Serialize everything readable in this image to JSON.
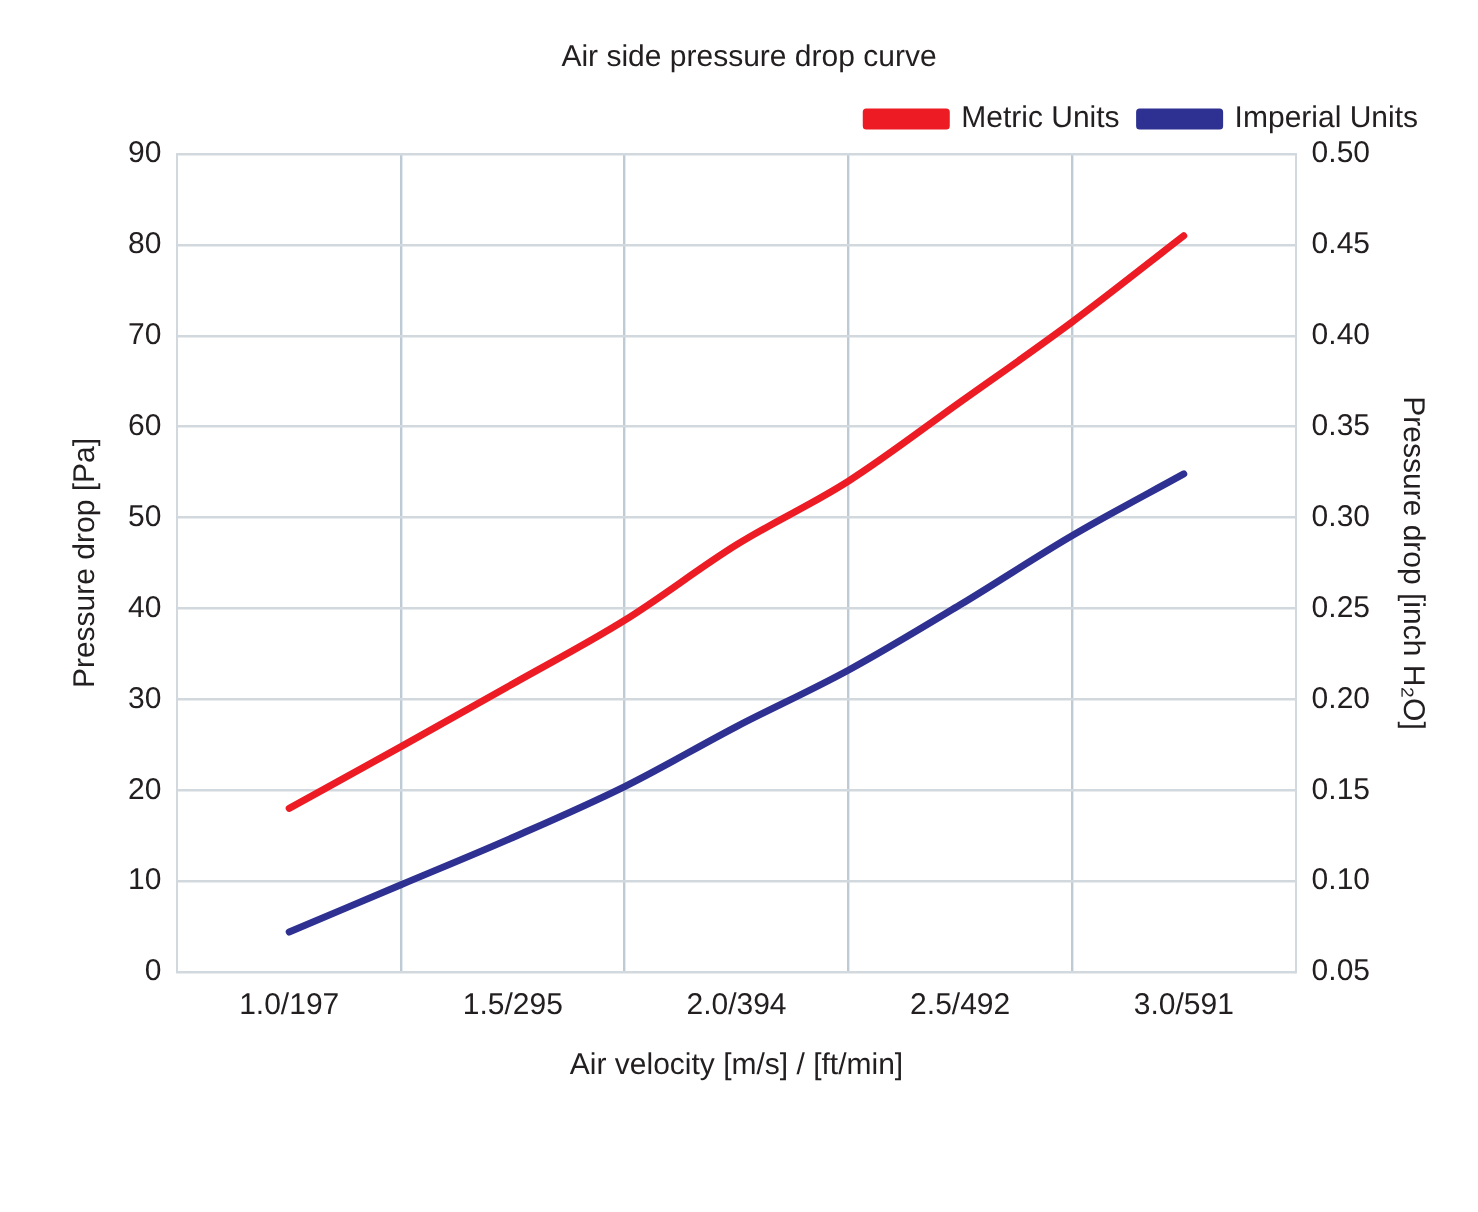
{
  "chart_data": {
    "type": "line",
    "title": "Air side pressure drop curve",
    "xlabel": "Air velocity [m/s] / [ft/min]",
    "ylabel": "Pressure drop [Pa]",
    "y2label": "Pressure drop [inch H₂O]",
    "categories": [
      "1.0/197",
      null,
      "1.5/295",
      null,
      "2.0/394",
      null,
      "2.5/492",
      null,
      "3.0/591"
    ],
    "ylim": [
      0,
      90
    ],
    "yticks": [
      0,
      10,
      20,
      30,
      40,
      50,
      60,
      70,
      80,
      90
    ],
    "y2lim": [
      0.05,
      0.5
    ],
    "y2ticks": [
      {
        "value": 0.05,
        "label": "0.05"
      },
      {
        "value": 0.1,
        "label": "0.10"
      },
      {
        "value": 0.15,
        "label": "0.15"
      },
      {
        "value": 0.2,
        "label": "0.20"
      },
      {
        "value": 0.25,
        "label": "0.25"
      },
      {
        "value": 0.3,
        "label": "0.30"
      },
      {
        "value": 0.35,
        "label": "0.35"
      },
      {
        "value": 0.4,
        "label": "0.40"
      },
      {
        "value": 0.45,
        "label": "0.45"
      },
      {
        "value": 0.5,
        "label": "0.50"
      }
    ],
    "series": [
      {
        "name": "Metric Units",
        "color": "#ed1c24",
        "values": [
          18,
          24.8,
          31.7,
          38.7,
          47,
          54,
          62.7,
          71.5,
          81
        ]
      },
      {
        "name": "Imperial Units",
        "color": "#2e3192",
        "axis": "y2",
        "values": [
          0.072,
          0.098,
          0.124,
          0.152,
          0.185,
          0.216,
          0.252,
          0.29,
          0.324
        ]
      }
    ],
    "grid": true,
    "legend": "top right",
    "marker": "none",
    "line_style": "solid"
  }
}
